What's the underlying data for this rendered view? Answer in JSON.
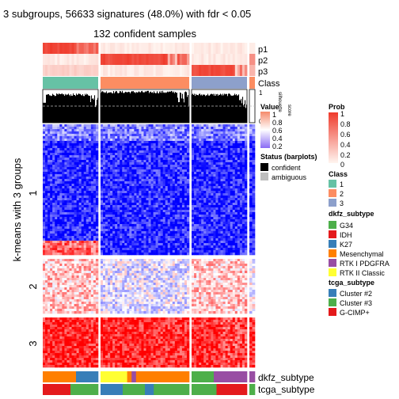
{
  "figure": {
    "title": "3 subgroups, 56633 signatures (48.0%) with fdr < 0.05",
    "subtitle": "132 confident samples",
    "row_axis_label": "k-means with 3 groups",
    "row_group_labels": [
      "1",
      "2",
      "3"
    ]
  },
  "annotation_rows": {
    "top": [
      "p1",
      "p2",
      "p3",
      "Class"
    ],
    "silhouette_label": "silhouette\nscore",
    "silhouette_ticks": [
      "1",
      "0"
    ],
    "bottom": [
      "dkfz_subtype",
      "tcga_subtype"
    ]
  },
  "legends": {
    "value": {
      "title": "Value",
      "ticks": [
        "1",
        "0.8",
        "0.6",
        "0.4",
        "0.2"
      ]
    },
    "prob": {
      "title": "Prob",
      "ticks": [
        "1",
        "0.8",
        "0.6",
        "0.4",
        "0.2",
        "0"
      ]
    },
    "status": {
      "title": "Status (barplots)",
      "items": [
        {
          "label": "confident",
          "color": "#000000"
        },
        {
          "label": "ambiguous",
          "color": "#bebebe"
        }
      ]
    },
    "class": {
      "title": "Class",
      "items": [
        {
          "label": "1",
          "color": "#66c2a5"
        },
        {
          "label": "2",
          "color": "#fc8d62"
        },
        {
          "label": "3",
          "color": "#8da0cb"
        }
      ]
    },
    "dkfz_subtype": {
      "title": "dkfz_subtype",
      "items": [
        {
          "label": "G34",
          "color": "#4daf4a"
        },
        {
          "label": "IDH",
          "color": "#e41a1c"
        },
        {
          "label": "K27",
          "color": "#377eb8"
        },
        {
          "label": "Mesenchymal",
          "color": "#ff7f00"
        },
        {
          "label": "RTK I PDGFRA",
          "color": "#984ea3"
        },
        {
          "label": "RTK II Classic",
          "color": "#ffff33"
        }
      ]
    },
    "tcga_subtype": {
      "title": "tcga_subtype",
      "items": [
        {
          "label": "Cluster #2",
          "color": "#377eb8"
        },
        {
          "label": "Cluster #3",
          "color": "#4daf4a"
        },
        {
          "label": "G-CIMP+",
          "color": "#e41a1c"
        }
      ]
    }
  },
  "colors": {
    "heat_low": "#0000ff",
    "heat_mid": "#ffffff",
    "heat_high": "#ff0000",
    "prob_high": "#ef3b2c",
    "prob_low": "#fff5f0",
    "silhouette_low": "#8a6bf5",
    "silhouette_mid": "#ffffff",
    "silhouette_high": "#f58a6b"
  },
  "chart_data": {
    "type": "heatmap",
    "title": "3 subgroups, 56633 signatures (48.0%) with fdr < 0.05",
    "subtitle": "132 confident samples",
    "ylabel": "k-means with 3 groups",
    "column_groups": [
      {
        "class": "1",
        "approx_samples": 32
      },
      {
        "class": "2",
        "approx_samples": 52
      },
      {
        "class": "3",
        "approx_samples": 33
      },
      {
        "class": "ambiguous",
        "approx_samples": 3
      }
    ],
    "row_groups": [
      {
        "label": "1",
        "pattern": "mostly low (blue) across all classes, high in class 1 only for a small block"
      },
      {
        "label": "2",
        "pattern": "high in class 1 and class 3, mixed/low in class 2"
      },
      {
        "label": "3",
        "pattern": "high (red) across all classes"
      }
    ],
    "column_annotations": {
      "dkfz_subtype": [
        {
          "class": "1",
          "segments": [
            [
              "Mesenchymal",
              0.6
            ],
            [
              "K27",
              0.4
            ]
          ]
        },
        {
          "class": "2",
          "segments": [
            [
              "RTK II Classic",
              0.3
            ],
            [
              "Mesenchymal",
              0.05
            ],
            [
              "RTK I PDGFRA",
              0.05
            ],
            [
              "Mesenchymal",
              0.6
            ]
          ]
        },
        {
          "class": "3",
          "segments": [
            [
              "G34",
              0.4
            ],
            [
              "RTK I PDGFRA",
              0.6
            ]
          ]
        },
        {
          "class": "ambiguous",
          "segments": [
            [
              "RTK I PDGFRA",
              1.0
            ]
          ]
        }
      ],
      "tcga_subtype": [
        {
          "class": "1",
          "segments": [
            [
              "G-CIMP+",
              0.5
            ],
            [
              "Cluster #3",
              0.5
            ]
          ]
        },
        {
          "class": "2",
          "segments": [
            [
              "Cluster #2",
              0.25
            ],
            [
              "Cluster #3",
              0.25
            ],
            [
              "Cluster #2",
              0.1
            ],
            [
              "Cluster #3",
              0.4
            ]
          ]
        },
        {
          "class": "3",
          "segments": [
            [
              "Cluster #3",
              0.45
            ],
            [
              "G-CIMP+",
              0.55
            ]
          ]
        },
        {
          "class": "ambiguous",
          "segments": [
            [
              "Cluster #3",
              1.0
            ]
          ]
        }
      ]
    },
    "silhouette_threshold_line": "dashed",
    "color_scale": {
      "value_range": [
        0,
        1
      ],
      "low": "blue",
      "mid": "white",
      "high": "red"
    }
  }
}
